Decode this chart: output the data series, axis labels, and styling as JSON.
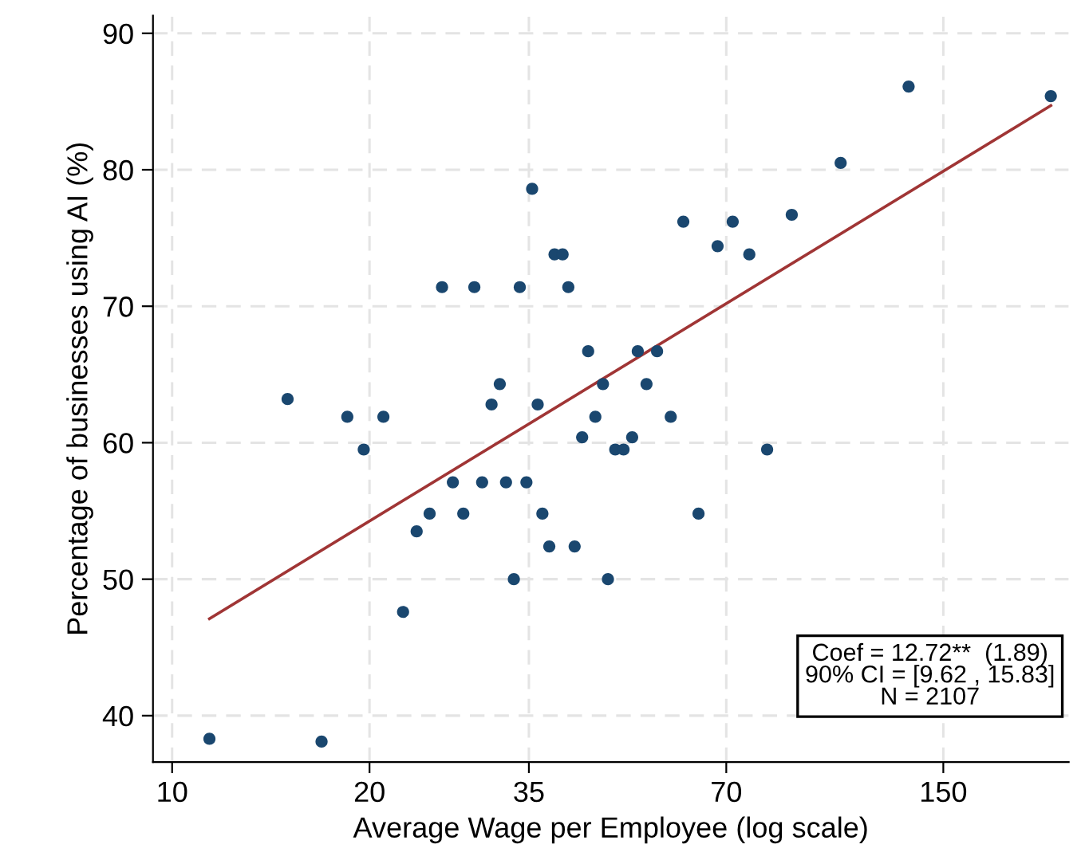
{
  "chart_data": {
    "type": "scatter",
    "xlabel": "Average Wage per Employee (log scale)",
    "ylabel": "Percentage of businesses using AI (%)",
    "log": "x",
    "grid": true,
    "legend": false,
    "xlim": [
      9.35,
      233
    ],
    "xticks": [
      10,
      20,
      35,
      70,
      150
    ],
    "ylim": [
      36.6,
      91.3
    ],
    "yticks": [
      40,
      50,
      60,
      70,
      80,
      90
    ],
    "annotations": [
      "Coef = 12.72**  (1.89)\n90% CI = [9.62 , 15.83]\nN = 2107"
    ],
    "series": [
      {
        "color": "#1a476f",
        "marker": "circle",
        "x": [
          11.4,
          16.9,
          15.0,
          18.5,
          19.6,
          21.0,
          22.5,
          23.6,
          24.7,
          25.8,
          26.8,
          27.8,
          28.9,
          29.7,
          30.7,
          31.6,
          32.3,
          33.2,
          33.9,
          34.7,
          35.4,
          36.1,
          36.7,
          37.6,
          38.3,
          39.4,
          40.2,
          41.1,
          43.1,
          42.2,
          44.2,
          45.4,
          46.2,
          47.4,
          48.8,
          50.3,
          51.3,
          52.9,
          54.9,
          57.6,
          60.2,
          63.5,
          67.9,
          71.6,
          75.9,
          80.8,
          88.1,
          104.6,
          132.8,
          218.8
        ],
        "values": [
          38.3,
          38.1,
          63.2,
          61.9,
          59.5,
          61.9,
          47.6,
          53.5,
          54.8,
          71.4,
          57.1,
          54.8,
          71.4,
          57.1,
          62.8,
          64.3,
          57.1,
          50.0,
          71.4,
          57.1,
          78.6,
          62.8,
          54.8,
          52.4,
          73.8,
          73.8,
          71.4,
          52.4,
          66.7,
          60.4,
          61.9,
          64.3,
          50.0,
          59.5,
          59.5,
          60.4,
          66.7,
          64.3,
          66.7,
          61.9,
          76.2,
          54.8,
          74.4,
          76.2,
          73.8,
          59.5,
          76.7,
          80.5,
          86.1,
          85.4
        ]
      },
      {
        "type": "line",
        "marker": "none",
        "color": "#a03535",
        "x": [
          11.4,
          218.8
        ],
        "values": [
          47.1,
          84.7
        ]
      }
    ]
  }
}
